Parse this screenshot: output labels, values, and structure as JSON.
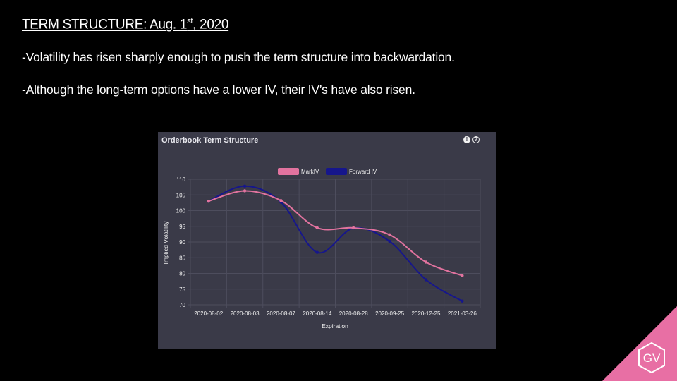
{
  "slide": {
    "title_main": "TERM STRUCTURE: Aug. 1",
    "title_sup": "st",
    "title_end": ", 2020",
    "bullets": [
      "-Volatility has risen sharply enough to push the term structure into backwardation.",
      "-Although the long-term options have a lower IV, their IV’s have also risen."
    ]
  },
  "panel": {
    "title": "Orderbook Term Structure",
    "info_icon": "info-icon",
    "help_icon": "help-icon"
  },
  "logo": {
    "text": "GV",
    "color": "#e86fa4"
  },
  "chart_data": {
    "type": "line",
    "title": "Orderbook Term Structure",
    "xlabel": "Expiration",
    "ylabel": "Implied Volatility",
    "categories": [
      "2020-08-02",
      "2020-08-03",
      "2020-08-07",
      "2020-08-14",
      "2020-08-28",
      "2020-09-25",
      "2020-12-25",
      "2021-03-26"
    ],
    "series": [
      {
        "name": "MarkIV",
        "color": "#e2739f",
        "values": [
          103,
          106.3,
          103.2,
          94.5,
          94.5,
          92.3,
          83.6,
          79.3
        ]
      },
      {
        "name": "Forward IV",
        "color": "#16168c",
        "values": [
          103,
          107.8,
          102.7,
          86.7,
          94.4,
          90.2,
          78.0,
          71.2
        ]
      }
    ],
    "ylim": [
      70,
      110
    ],
    "yticks": [
      70,
      75,
      80,
      85,
      90,
      95,
      100,
      105,
      110
    ],
    "grid": true,
    "legend_position": "top-center"
  }
}
